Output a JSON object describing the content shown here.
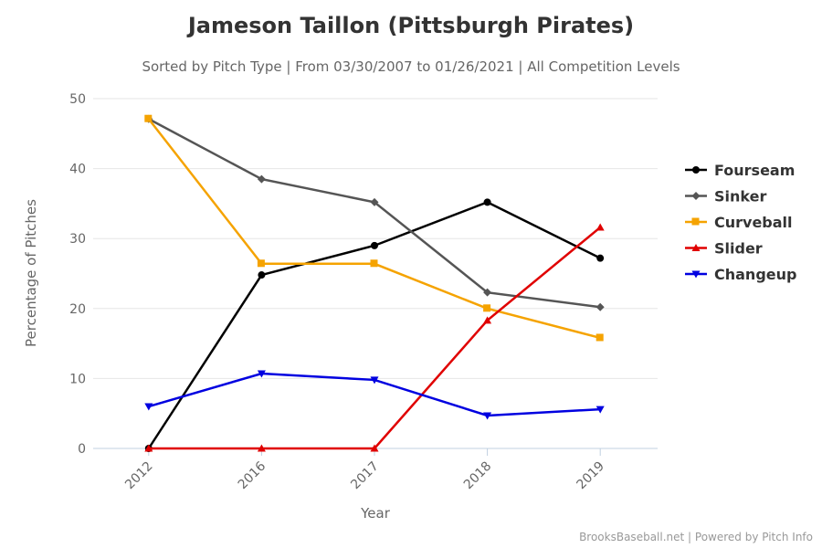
{
  "chart_data": {
    "type": "line",
    "title": "Jameson Taillon (Pittsburgh Pirates)",
    "subtitle": "Sorted by Pitch Type | From 03/30/2007 to 01/26/2021 | All Competition Levels",
    "xlabel": "Year",
    "ylabel": "Percentage of Pitches",
    "categories": [
      "2012",
      "2016",
      "2017",
      "2018",
      "2019"
    ],
    "ylim": [
      0,
      50
    ],
    "yticks": [
      0,
      10,
      20,
      30,
      40,
      50
    ],
    "grid": true,
    "legend_position": "right",
    "series": [
      {
        "name": "Fourseam",
        "color": "#000000",
        "marker": "circle",
        "values": [
          0,
          24.8,
          29.0,
          35.2,
          27.2
        ]
      },
      {
        "name": "Sinker",
        "color": "#555555",
        "marker": "diamond",
        "values": [
          47.1,
          38.5,
          35.2,
          22.3,
          20.2
        ]
      },
      {
        "name": "Curveball",
        "color": "#f5a300",
        "marker": "square",
        "values": [
          47.1,
          26.4,
          26.4,
          20.0,
          15.8
        ]
      },
      {
        "name": "Slider",
        "color": "#e00000",
        "marker": "triangle",
        "values": [
          0,
          0,
          0,
          18.3,
          31.6
        ]
      },
      {
        "name": "Changeup",
        "color": "#0000e0",
        "marker": "triangle-down",
        "values": [
          6.0,
          10.7,
          9.8,
          4.7,
          5.6
        ]
      }
    ],
    "credit": "BrooksBaseball.net | Powered by Pitch Info"
  }
}
